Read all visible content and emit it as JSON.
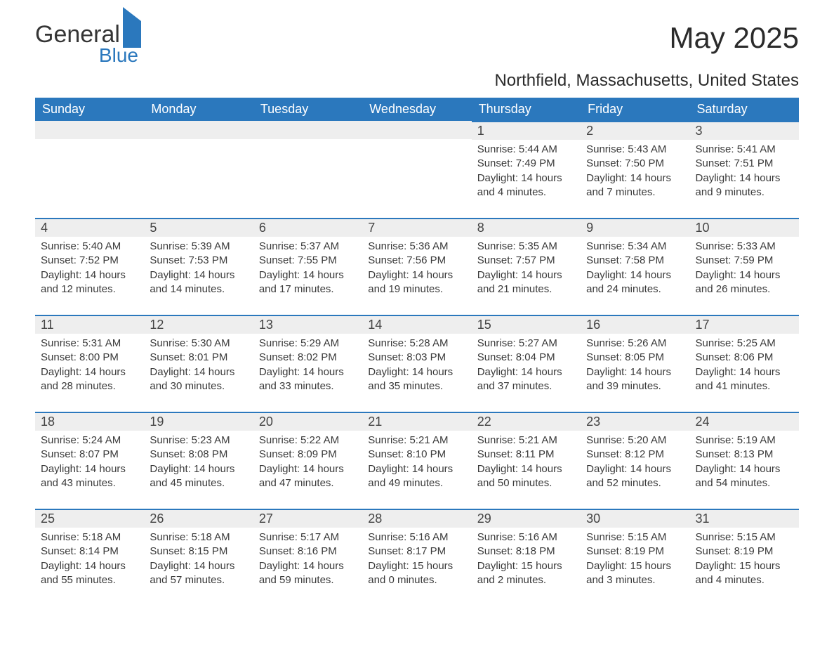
{
  "brand": {
    "line1": "General",
    "line2": "Blue"
  },
  "title": "May 2025",
  "location": "Northfield, Massachusetts, United States",
  "weekdays": [
    "Sunday",
    "Monday",
    "Tuesday",
    "Wednesday",
    "Thursday",
    "Friday",
    "Saturday"
  ],
  "colors": {
    "header_bg": "#2b78bd",
    "header_text": "#ffffff",
    "daynum_bg": "#eeeeee",
    "daynum_border": "#2b78bd",
    "body_text": "#3a3a3a",
    "page_bg": "#ffffff"
  },
  "typography": {
    "title_fontsize": 42,
    "location_fontsize": 24,
    "weekday_fontsize": 18,
    "daynum_fontsize": 18,
    "cell_fontsize": 15
  },
  "first_weekday_index": 4,
  "days": [
    {
      "n": 1,
      "sunrise": "5:44 AM",
      "sunset": "7:49 PM",
      "dl": "14 hours and 4 minutes."
    },
    {
      "n": 2,
      "sunrise": "5:43 AM",
      "sunset": "7:50 PM",
      "dl": "14 hours and 7 minutes."
    },
    {
      "n": 3,
      "sunrise": "5:41 AM",
      "sunset": "7:51 PM",
      "dl": "14 hours and 9 minutes."
    },
    {
      "n": 4,
      "sunrise": "5:40 AM",
      "sunset": "7:52 PM",
      "dl": "14 hours and 12 minutes."
    },
    {
      "n": 5,
      "sunrise": "5:39 AM",
      "sunset": "7:53 PM",
      "dl": "14 hours and 14 minutes."
    },
    {
      "n": 6,
      "sunrise": "5:37 AM",
      "sunset": "7:55 PM",
      "dl": "14 hours and 17 minutes."
    },
    {
      "n": 7,
      "sunrise": "5:36 AM",
      "sunset": "7:56 PM",
      "dl": "14 hours and 19 minutes."
    },
    {
      "n": 8,
      "sunrise": "5:35 AM",
      "sunset": "7:57 PM",
      "dl": "14 hours and 21 minutes."
    },
    {
      "n": 9,
      "sunrise": "5:34 AM",
      "sunset": "7:58 PM",
      "dl": "14 hours and 24 minutes."
    },
    {
      "n": 10,
      "sunrise": "5:33 AM",
      "sunset": "7:59 PM",
      "dl": "14 hours and 26 minutes."
    },
    {
      "n": 11,
      "sunrise": "5:31 AM",
      "sunset": "8:00 PM",
      "dl": "14 hours and 28 minutes."
    },
    {
      "n": 12,
      "sunrise": "5:30 AM",
      "sunset": "8:01 PM",
      "dl": "14 hours and 30 minutes."
    },
    {
      "n": 13,
      "sunrise": "5:29 AM",
      "sunset": "8:02 PM",
      "dl": "14 hours and 33 minutes."
    },
    {
      "n": 14,
      "sunrise": "5:28 AM",
      "sunset": "8:03 PM",
      "dl": "14 hours and 35 minutes."
    },
    {
      "n": 15,
      "sunrise": "5:27 AM",
      "sunset": "8:04 PM",
      "dl": "14 hours and 37 minutes."
    },
    {
      "n": 16,
      "sunrise": "5:26 AM",
      "sunset": "8:05 PM",
      "dl": "14 hours and 39 minutes."
    },
    {
      "n": 17,
      "sunrise": "5:25 AM",
      "sunset": "8:06 PM",
      "dl": "14 hours and 41 minutes."
    },
    {
      "n": 18,
      "sunrise": "5:24 AM",
      "sunset": "8:07 PM",
      "dl": "14 hours and 43 minutes."
    },
    {
      "n": 19,
      "sunrise": "5:23 AM",
      "sunset": "8:08 PM",
      "dl": "14 hours and 45 minutes."
    },
    {
      "n": 20,
      "sunrise": "5:22 AM",
      "sunset": "8:09 PM",
      "dl": "14 hours and 47 minutes."
    },
    {
      "n": 21,
      "sunrise": "5:21 AM",
      "sunset": "8:10 PM",
      "dl": "14 hours and 49 minutes."
    },
    {
      "n": 22,
      "sunrise": "5:21 AM",
      "sunset": "8:11 PM",
      "dl": "14 hours and 50 minutes."
    },
    {
      "n": 23,
      "sunrise": "5:20 AM",
      "sunset": "8:12 PM",
      "dl": "14 hours and 52 minutes."
    },
    {
      "n": 24,
      "sunrise": "5:19 AM",
      "sunset": "8:13 PM",
      "dl": "14 hours and 54 minutes."
    },
    {
      "n": 25,
      "sunrise": "5:18 AM",
      "sunset": "8:14 PM",
      "dl": "14 hours and 55 minutes."
    },
    {
      "n": 26,
      "sunrise": "5:18 AM",
      "sunset": "8:15 PM",
      "dl": "14 hours and 57 minutes."
    },
    {
      "n": 27,
      "sunrise": "5:17 AM",
      "sunset": "8:16 PM",
      "dl": "14 hours and 59 minutes."
    },
    {
      "n": 28,
      "sunrise": "5:16 AM",
      "sunset": "8:17 PM",
      "dl": "15 hours and 0 minutes."
    },
    {
      "n": 29,
      "sunrise": "5:16 AM",
      "sunset": "8:18 PM",
      "dl": "15 hours and 2 minutes."
    },
    {
      "n": 30,
      "sunrise": "5:15 AM",
      "sunset": "8:19 PM",
      "dl": "15 hours and 3 minutes."
    },
    {
      "n": 31,
      "sunrise": "5:15 AM",
      "sunset": "8:19 PM",
      "dl": "15 hours and 4 minutes."
    }
  ],
  "labels": {
    "sunrise": "Sunrise",
    "sunset": "Sunset",
    "daylight": "Daylight"
  }
}
